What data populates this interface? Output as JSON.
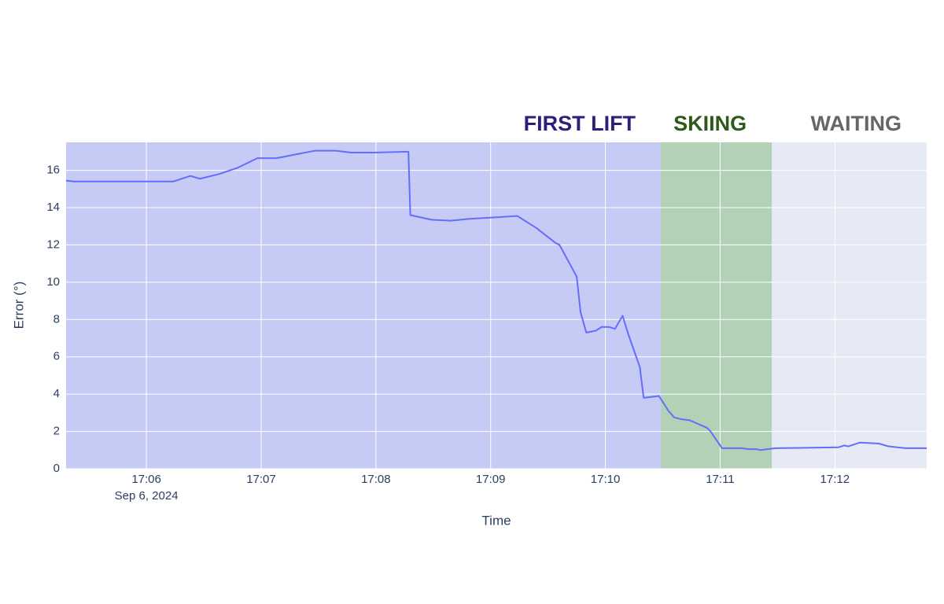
{
  "chart_data": {
    "type": "line",
    "x_label": "Time",
    "y_label": "Error (°)",
    "xlim": [
      "2024-09-06 17:05:18",
      "2024-09-06 17:12:48"
    ],
    "ylim": [
      0,
      17.5
    ],
    "yticks": [
      0,
      2,
      4,
      6,
      8,
      10,
      12,
      14,
      16
    ],
    "xticks": [
      {
        "value": "2024-09-06 17:06:00",
        "label": "17:06",
        "sublabel": "Sep 6, 2024"
      },
      {
        "value": "2024-09-06 17:07:00",
        "label": "17:07"
      },
      {
        "value": "2024-09-06 17:08:00",
        "label": "17:08"
      },
      {
        "value": "2024-09-06 17:09:00",
        "label": "17:09"
      },
      {
        "value": "2024-09-06 17:10:00",
        "label": "17:10"
      },
      {
        "value": "2024-09-06 17:11:00",
        "label": "17:11"
      },
      {
        "value": "2024-09-06 17:12:00",
        "label": "17:12"
      }
    ],
    "grid": true,
    "background": "#e5ecf6",
    "regions": [
      {
        "label": "FIRST LIFT",
        "start": "2024-09-06 17:05:18",
        "end": "2024-09-06 17:10:29",
        "color": "#c5cbf5",
        "label_color": "#2f1f7a"
      },
      {
        "label": "SKIING",
        "start": "2024-09-06 17:10:29",
        "end": "2024-09-06 17:11:27",
        "color": "#b3d1b7",
        "label_color": "#2d5a1a"
      },
      {
        "label": "WAITING",
        "start": "2024-09-06 17:11:27",
        "end": "2024-09-06 17:12:48",
        "color": "#e5eaf4",
        "label_color": "#666666"
      }
    ],
    "x": [
      "2024-09-06 17:05:18",
      "2024-09-06 17:05:22",
      "2024-09-06 17:06:14",
      "2024-09-06 17:06:23",
      "2024-09-06 17:06:28",
      "2024-09-06 17:06:38",
      "2024-09-06 17:06:48",
      "2024-09-06 17:06:58",
      "2024-09-06 17:07:08",
      "2024-09-06 17:07:18",
      "2024-09-06 17:07:28",
      "2024-09-06 17:07:39",
      "2024-09-06 17:07:47",
      "2024-09-06 17:07:59",
      "2024-09-06 17:08:17",
      "2024-09-06 17:08:18",
      "2024-09-06 17:08:29",
      "2024-09-06 17:08:39",
      "2024-09-06 17:08:49",
      "2024-09-06 17:09:14",
      "2024-09-06 17:09:24",
      "2024-09-06 17:09:34",
      "2024-09-06 17:09:36",
      "2024-09-06 17:09:45",
      "2024-09-06 17:09:47",
      "2024-09-06 17:09:50",
      "2024-09-06 17:09:55",
      "2024-09-06 17:09:58",
      "2024-09-06 17:10:02",
      "2024-09-06 17:10:05",
      "2024-09-06 17:10:09",
      "2024-09-06 17:10:12",
      "2024-09-06 17:10:18",
      "2024-09-06 17:10:20",
      "2024-09-06 17:10:28",
      "2024-09-06 17:10:33",
      "2024-09-06 17:10:36",
      "2024-09-06 17:10:40",
      "2024-09-06 17:10:44",
      "2024-09-06 17:10:53",
      "2024-09-06 17:10:55",
      "2024-09-06 17:11:01",
      "2024-09-06 17:11:11",
      "2024-09-06 17:11:15",
      "2024-09-06 17:11:19",
      "2024-09-06 17:11:21",
      "2024-09-06 17:11:29",
      "2024-09-06 17:12:02",
      "2024-09-06 17:12:05",
      "2024-09-06 17:12:07",
      "2024-09-06 17:12:13",
      "2024-09-06 17:12:23",
      "2024-09-06 17:12:28",
      "2024-09-06 17:12:37",
      "2024-09-06 17:12:48"
    ],
    "series": [
      {
        "color": "#636efa",
        "values": [
          15.45,
          15.4,
          15.4,
          15.7,
          15.55,
          15.8,
          16.15,
          16.65,
          16.65,
          16.85,
          17.05,
          17.05,
          16.95,
          16.95,
          17.0,
          13.6,
          13.35,
          13.3,
          13.4,
          13.55,
          12.9,
          12.1,
          12.0,
          10.3,
          8.4,
          7.3,
          7.4,
          7.6,
          7.6,
          7.5,
          8.2,
          7.2,
          5.45,
          3.8,
          3.9,
          3.1,
          2.75,
          2.65,
          2.6,
          2.2,
          2.0,
          1.1,
          1.1,
          1.05,
          1.05,
          1.0,
          1.1,
          1.15,
          1.25,
          1.2,
          1.4,
          1.35,
          1.2,
          1.1,
          1.1
        ]
      }
    ]
  }
}
